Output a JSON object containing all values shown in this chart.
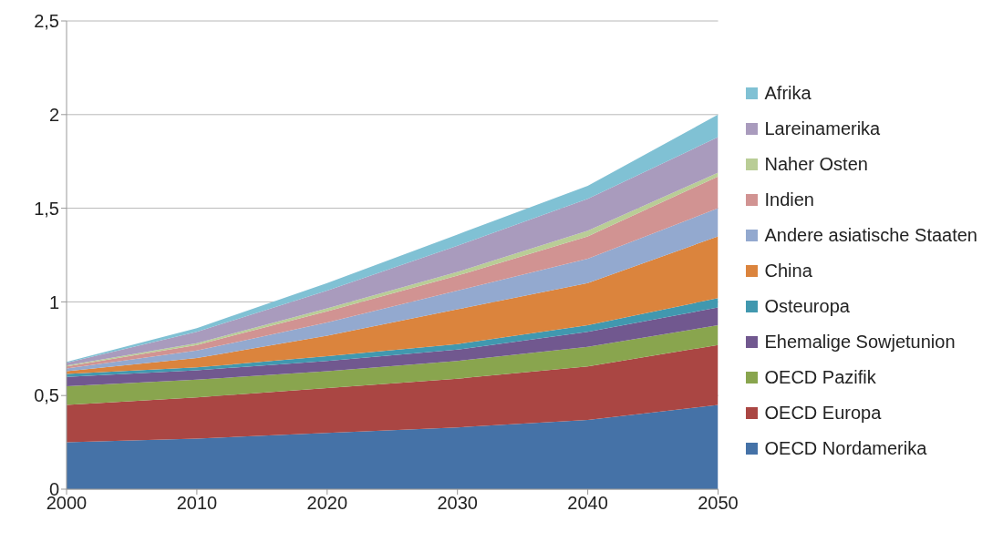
{
  "chart_data": {
    "type": "area",
    "stacked": true,
    "x": [
      2000,
      2010,
      2020,
      2030,
      2040,
      2050
    ],
    "xlim": [
      2000,
      2050
    ],
    "xticks": [
      2000,
      2010,
      2020,
      2030,
      2040,
      2050
    ],
    "ylim": [
      0,
      2.5
    ],
    "yticks": [
      0,
      {
        "value": 0.5,
        "label": "0,5"
      },
      1,
      {
        "value": 1.5,
        "label": "1,5"
      },
      2,
      {
        "value": 2.5,
        "label": "2,5"
      }
    ],
    "grid": "y",
    "legend": "right",
    "series": [
      {
        "name": "OECD Nordamerika",
        "color": "#4572a7",
        "values": [
          0.25,
          0.27,
          0.3,
          0.33,
          0.37,
          0.45
        ]
      },
      {
        "name": "OECD Europa",
        "color": "#aa4643",
        "values": [
          0.2,
          0.22,
          0.24,
          0.26,
          0.285,
          0.32
        ]
      },
      {
        "name": "OECD Pazifik",
        "color": "#89a54e",
        "values": [
          0.1,
          0.095,
          0.09,
          0.095,
          0.105,
          0.105
        ]
      },
      {
        "name": "Ehemalige Sowjetunion",
        "color": "#71588f",
        "values": [
          0.05,
          0.05,
          0.055,
          0.06,
          0.08,
          0.095
        ]
      },
      {
        "name": "Osteuropa",
        "color": "#4198af",
        "values": [
          0.015,
          0.015,
          0.025,
          0.03,
          0.035,
          0.05
        ]
      },
      {
        "name": "China",
        "color": "#db843d",
        "values": [
          0.015,
          0.05,
          0.11,
          0.185,
          0.225,
          0.33
        ]
      },
      {
        "name": "Andere asiatische Staaten",
        "color": "#93a9cf",
        "values": [
          0.015,
          0.04,
          0.07,
          0.1,
          0.13,
          0.15
        ]
      },
      {
        "name": "Indien",
        "color": "#d19392",
        "values": [
          0.01,
          0.03,
          0.06,
          0.08,
          0.12,
          0.17
        ]
      },
      {
        "name": "Naher Osten",
        "color": "#b9cd96",
        "values": [
          0.005,
          0.01,
          0.015,
          0.02,
          0.03,
          0.02
        ]
      },
      {
        "name": "Lareinamerika",
        "color": "#a99bbd",
        "values": [
          0.015,
          0.06,
          0.095,
          0.14,
          0.17,
          0.19
        ]
      },
      {
        "name": "Afrika",
        "color": "#80c1d4",
        "values": [
          0.005,
          0.02,
          0.04,
          0.06,
          0.07,
          0.12
        ]
      }
    ]
  }
}
